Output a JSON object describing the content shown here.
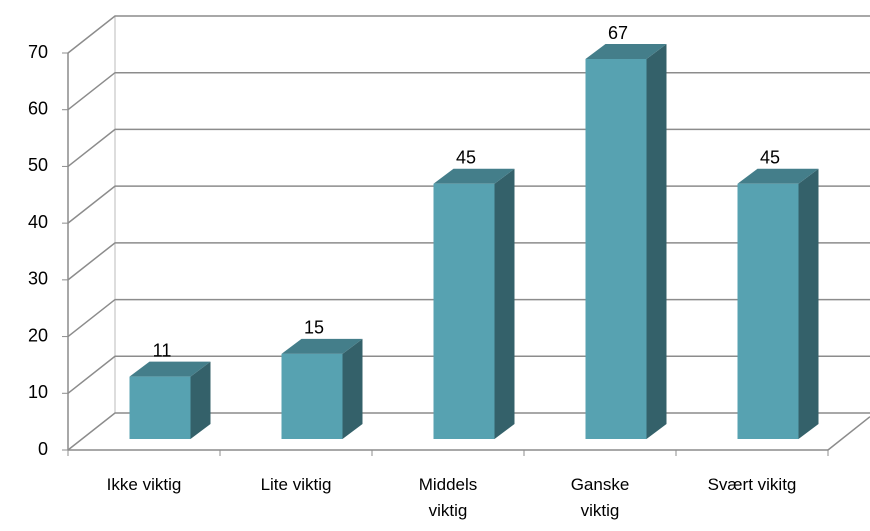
{
  "chart_data": {
    "type": "bar3d",
    "categories": [
      "Ikke viktig",
      "Lite viktig",
      "Middels viktig",
      "Ganske viktig",
      "Svært vikitg"
    ],
    "values": [
      11,
      15,
      45,
      67,
      45
    ],
    "color": "#57a2b1",
    "ylim": [
      0,
      70
    ],
    "yticks": [
      0,
      10,
      20,
      30,
      40,
      50,
      60,
      70
    ],
    "grid": true
  }
}
